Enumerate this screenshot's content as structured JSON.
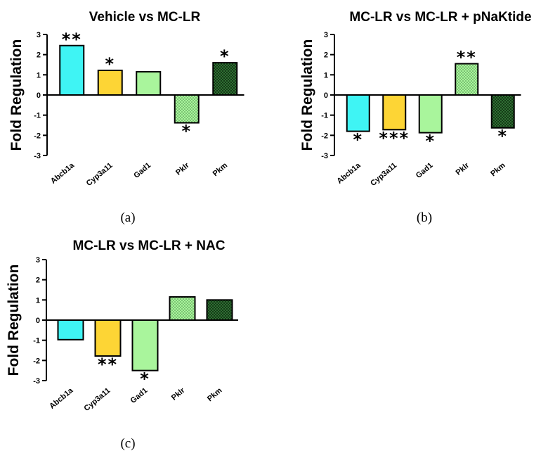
{
  "colors": {
    "Abcb1a": "#3ff4f4",
    "Cyp3a11": "#fdd535",
    "Gad1": "#a9f59c",
    "Pklr": "#a9f59c",
    "Pkm": "#2f6f33"
  },
  "chart_data": [
    {
      "type": "bar",
      "title": "Vehicle vs MC-LR",
      "caption": "(a)",
      "ylabel": "Fold Regulation",
      "xlabel": "",
      "ylim": [
        -3,
        3
      ],
      "yticks": [
        "3",
        "2",
        "1",
        "0",
        "-1",
        "-2",
        "-3"
      ],
      "categories": [
        "Abcb1a",
        "Cyp3a11",
        "Gad1",
        "Pklr",
        "Pkm"
      ],
      "values": [
        2.45,
        1.22,
        1.15,
        -1.38,
        1.6
      ],
      "significance": [
        "**",
        "*",
        "",
        "*",
        "*"
      ]
    },
    {
      "type": "bar",
      "title": "MC-LR vs MC-LR + pNaKtide",
      "caption": "(b)",
      "ylabel": "Fold Regulation",
      "xlabel": "",
      "ylim": [
        -3,
        3
      ],
      "yticks": [
        "3",
        "2",
        "1",
        "0",
        "-1",
        "-2",
        "-3"
      ],
      "categories": [
        "Abcb1a",
        "Cyp3a11",
        "Gad1",
        "Pklr",
        "Pkm"
      ],
      "values": [
        -1.8,
        -1.72,
        -1.87,
        1.55,
        -1.63
      ],
      "significance": [
        "*",
        "***",
        "*",
        "**",
        "*"
      ]
    },
    {
      "type": "bar",
      "title": "MC-LR vs MC-LR + NAC",
      "caption": "(c)",
      "ylabel": "Fold Regulation",
      "xlabel": "",
      "ylim": [
        -3,
        3
      ],
      "yticks": [
        "3",
        "2",
        "1",
        "0",
        "-1",
        "-2",
        "-3"
      ],
      "categories": [
        "Abcb1a",
        "Cyp3a11",
        "Gad1",
        "Pklr",
        "Pkm"
      ],
      "values": [
        -0.97,
        -1.78,
        -2.5,
        1.15,
        1.0
      ],
      "significance": [
        "",
        "**",
        "*",
        "",
        ""
      ]
    }
  ]
}
